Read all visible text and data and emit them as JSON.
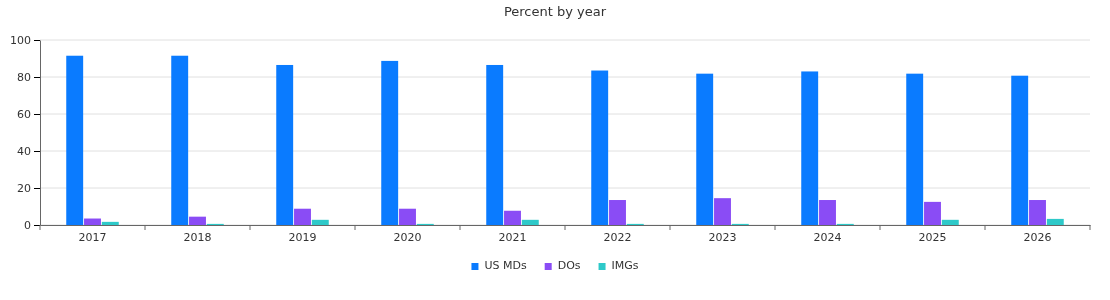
{
  "chart_data": {
    "type": "bar",
    "title": "Percent by year",
    "categories": [
      "2017",
      "2018",
      "2019",
      "2020",
      "2021",
      "2022",
      "2023",
      "2024",
      "2025",
      "2026"
    ],
    "series": [
      {
        "name": "US MDs",
        "color": "#0a7bff",
        "values": [
          91.5,
          91.5,
          86.5,
          88.7,
          86.5,
          83.5,
          81.8,
          83,
          81.8,
          80.7
        ]
      },
      {
        "name": "DOs",
        "color": "#8a4cf5",
        "values": [
          3.5,
          4.5,
          8.8,
          8.8,
          7.7,
          13.5,
          14.5,
          13.5,
          12.5,
          13.5
        ]
      },
      {
        "name": "IMGs",
        "color": "#2ec9c9",
        "values": [
          1.7,
          0.6,
          2.8,
          0.6,
          2.8,
          0.6,
          0.6,
          0.6,
          2.8,
          3.3
        ]
      }
    ],
    "ylim": [
      0,
      100
    ],
    "yticks": [
      0,
      20,
      40,
      60,
      80,
      100
    ],
    "grid": "y",
    "legend": "bottom"
  }
}
